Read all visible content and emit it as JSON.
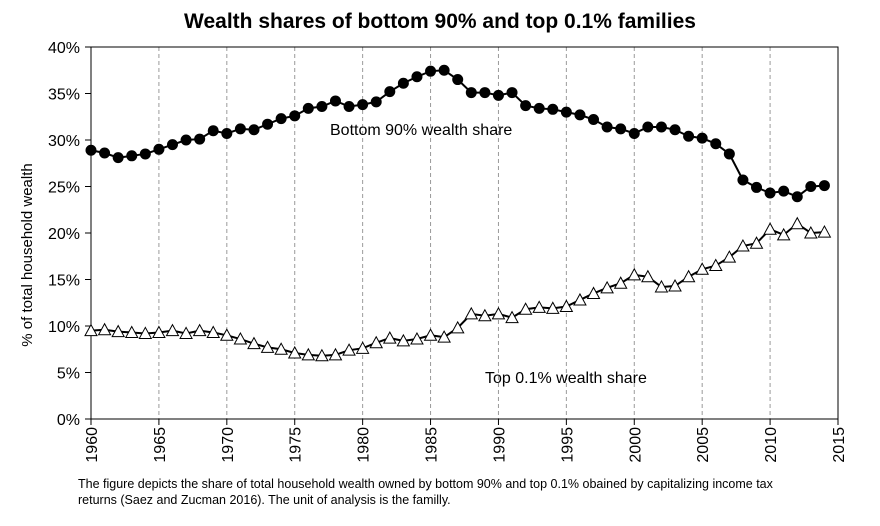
{
  "chart_data": {
    "type": "line",
    "title": "Wealth shares of bottom 90% and top 0.1% families",
    "ylabel": "% of total household wealth",
    "xlabel": "",
    "xlim": [
      1960,
      2015
    ],
    "ylim": [
      0,
      40
    ],
    "x_ticks": [
      "1960",
      "1965",
      "1970",
      "1975",
      "1980",
      "1985",
      "1990",
      "1995",
      "2000",
      "2005",
      "2010",
      "2015"
    ],
    "y_ticks": [
      "0%",
      "5%",
      "10%",
      "15%",
      "20%",
      "25%",
      "30%",
      "35%",
      "40%"
    ],
    "grid": "vertical dashed",
    "legend": "none",
    "x": [
      1960,
      1961,
      1962,
      1963,
      1964,
      1965,
      1966,
      1967,
      1968,
      1969,
      1970,
      1971,
      1972,
      1973,
      1974,
      1975,
      1976,
      1977,
      1978,
      1979,
      1980,
      1981,
      1982,
      1983,
      1984,
      1985,
      1986,
      1987,
      1988,
      1989,
      1990,
      1991,
      1992,
      1993,
      1994,
      1995,
      1996,
      1997,
      1998,
      1999,
      2000,
      2001,
      2002,
      2003,
      2004,
      2005,
      2006,
      2007,
      2008,
      2009,
      2010,
      2011,
      2012,
      2013,
      2014
    ],
    "series": [
      {
        "name": "Bottom 90% wealth share",
        "marker": "filled-circle",
        "color": "#000000",
        "values": [
          28.9,
          28.6,
          28.1,
          28.3,
          28.5,
          29.0,
          29.5,
          30.0,
          30.1,
          31.0,
          30.7,
          31.2,
          31.1,
          31.7,
          32.3,
          32.6,
          33.4,
          33.6,
          34.2,
          33.6,
          33.8,
          34.1,
          35.2,
          36.1,
          36.8,
          37.4,
          37.5,
          36.5,
          35.1,
          35.1,
          34.8,
          35.1,
          33.7,
          33.4,
          33.3,
          33.0,
          32.7,
          32.2,
          31.4,
          31.2,
          30.7,
          31.4,
          31.4,
          31.1,
          30.4,
          30.2,
          29.6,
          28.5,
          25.7,
          24.9,
          24.3,
          24.5,
          23.9,
          25.0,
          25.1
        ]
      },
      {
        "name": "Top 0.1% wealth share",
        "marker": "open-triangle",
        "color": "#000000",
        "values": [
          9.5,
          9.6,
          9.4,
          9.3,
          9.2,
          9.3,
          9.5,
          9.2,
          9.5,
          9.3,
          9.0,
          8.6,
          8.1,
          7.7,
          7.5,
          7.1,
          6.9,
          6.8,
          6.9,
          7.4,
          7.6,
          8.2,
          8.7,
          8.4,
          8.6,
          9.0,
          8.8,
          9.8,
          11.3,
          11.1,
          11.3,
          10.9,
          11.8,
          12.0,
          11.9,
          12.1,
          12.8,
          13.5,
          14.1,
          14.6,
          15.5,
          15.3,
          14.2,
          14.3,
          15.3,
          16.1,
          16.5,
          17.4,
          18.6,
          18.9,
          20.4,
          19.8,
          21.0,
          20.0,
          20.1
        ]
      }
    ],
    "annotations": [
      "Bottom 90% wealth share",
      "Top 0.1% wealth share"
    ]
  },
  "caption": "The figure depicts the share of total household wealth owned by bottom 90% and top 0.1% obained by capitalizing income tax returns (Saez and Zucman 2016). The unit of analysis is the familly."
}
